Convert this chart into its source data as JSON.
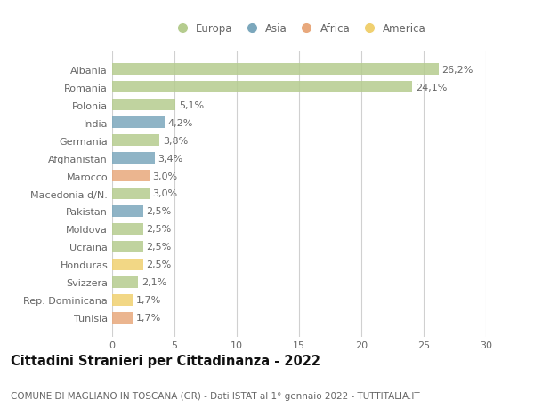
{
  "countries": [
    "Tunisia",
    "Rep. Dominicana",
    "Svizzera",
    "Honduras",
    "Ucraina",
    "Moldova",
    "Pakistan",
    "Macedonia d/N.",
    "Marocco",
    "Afghanistan",
    "Germania",
    "India",
    "Polonia",
    "Romania",
    "Albania"
  ],
  "values": [
    1.7,
    1.7,
    2.1,
    2.5,
    2.5,
    2.5,
    2.5,
    3.0,
    3.0,
    3.4,
    3.8,
    4.2,
    5.1,
    24.1,
    26.2
  ],
  "labels": [
    "1,7%",
    "1,7%",
    "2,1%",
    "2,5%",
    "2,5%",
    "2,5%",
    "2,5%",
    "3,0%",
    "3,0%",
    "3,4%",
    "3,8%",
    "4,2%",
    "5,1%",
    "24,1%",
    "26,2%"
  ],
  "continents": [
    "Africa",
    "America",
    "Europa",
    "America",
    "Europa",
    "Europa",
    "Asia",
    "Europa",
    "Africa",
    "Asia",
    "Europa",
    "Asia",
    "Europa",
    "Europa",
    "Europa"
  ],
  "continent_colors": {
    "Europa": "#b5cc8e",
    "Asia": "#7ba7bc",
    "Africa": "#e8a87c",
    "America": "#f0d070"
  },
  "legend_items": [
    "Europa",
    "Asia",
    "Africa",
    "America"
  ],
  "title": "Cittadini Stranieri per Cittadinanza - 2022",
  "subtitle": "COMUNE DI MAGLIANO IN TOSCANA (GR) - Dati ISTAT al 1° gennaio 2022 - TUTTITALIA.IT",
  "xlim": [
    0,
    30
  ],
  "xticks": [
    0,
    5,
    10,
    15,
    20,
    25,
    30
  ],
  "bg_color": "#ffffff",
  "grid_color": "#d0d0d0",
  "bar_height": 0.65,
  "label_fontsize": 8,
  "tick_fontsize": 8,
  "title_fontsize": 10.5,
  "subtitle_fontsize": 7.5
}
